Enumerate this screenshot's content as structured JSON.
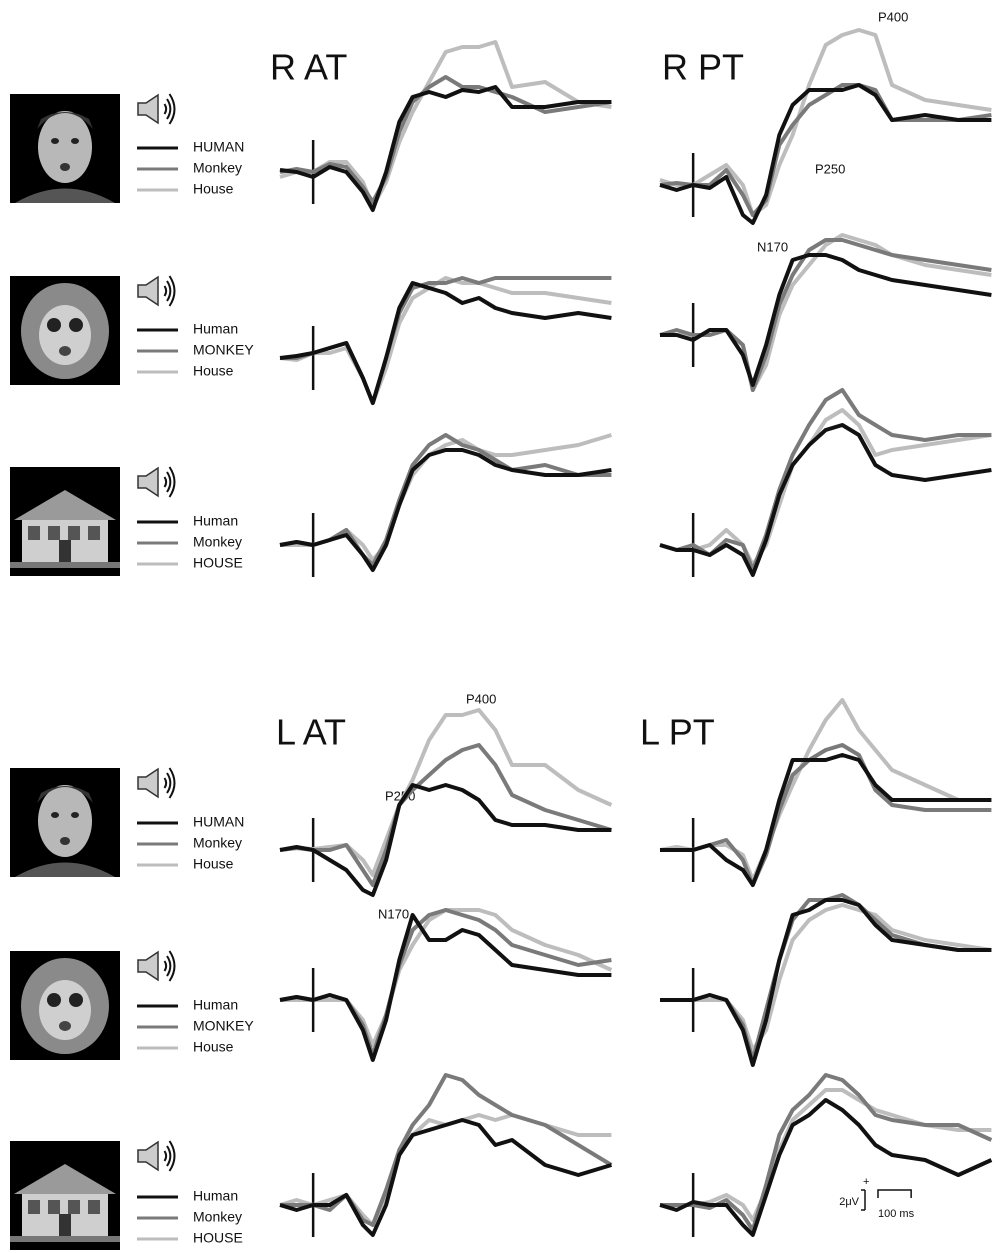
{
  "chart_data": [
    {
      "type": "line",
      "title": "R AT",
      "x": [
        -100,
        -50,
        0,
        50,
        100,
        150,
        180,
        220,
        260,
        300,
        350,
        400,
        450,
        500,
        550,
        600,
        700,
        800,
        900
      ],
      "xlim": [
        -100,
        950
      ],
      "ylim": [
        -7,
        16
      ],
      "series": [
        {
          "name": "HUMAN",
          "color": "#111111",
          "values": [
            0.2,
            0,
            -0.5,
            0.5,
            0,
            -2,
            -3.8,
            0,
            5,
            7.5,
            8,
            7.5,
            8.2,
            8,
            8.5,
            6.5,
            6.5,
            7,
            7
          ]
        },
        {
          "name": "Monkey",
          "color": "#7a7a7a",
          "values": [
            0,
            0.3,
            0,
            0.8,
            0.5,
            -1.5,
            -3,
            -0.5,
            4,
            7,
            8.5,
            9.5,
            8.5,
            8.5,
            8,
            7.5,
            6,
            6.5,
            7
          ]
        },
        {
          "name": "House",
          "color": "#bdbdbd",
          "values": [
            -0.5,
            0,
            0,
            1,
            1,
            -1,
            -3.5,
            -1,
            3,
            6,
            9,
            12,
            12.5,
            12.5,
            13,
            8.5,
            9,
            7,
            6.5
          ]
        }
      ]
    },
    {
      "type": "line",
      "title": "R PT",
      "annotations": [
        "P400",
        "P250",
        "N170"
      ],
      "x": [
        -100,
        -50,
        0,
        50,
        100,
        150,
        180,
        220,
        260,
        300,
        350,
        400,
        450,
        500,
        550,
        600,
        700,
        800,
        900
      ],
      "xlim": [
        -100,
        900
      ],
      "ylim": [
        -7,
        16
      ],
      "series": [
        {
          "color": "#111111",
          "values": [
            0,
            -0.5,
            0,
            -0.3,
            0.8,
            -3,
            -3.8,
            -1,
            5,
            8,
            9.5,
            9.5,
            9.5,
            10,
            9,
            6.5,
            7,
            6.5,
            6.5
          ]
        },
        {
          "color": "#7a7a7a",
          "values": [
            0,
            0.2,
            0,
            0,
            1.5,
            -1,
            -3,
            -1.5,
            4,
            6,
            8,
            9,
            10,
            10,
            9.5,
            6.5,
            6.5,
            6.5,
            7
          ]
        },
        {
          "color": "#bdbdbd",
          "values": [
            0.5,
            0,
            0,
            1,
            2,
            0,
            -3,
            -2,
            2,
            5,
            10,
            14,
            15,
            15.5,
            15,
            10,
            8.5,
            8,
            7.5
          ]
        }
      ]
    },
    {
      "type": "line",
      "x": [
        -100,
        -50,
        0,
        50,
        100,
        150,
        180,
        220,
        260,
        300,
        350,
        400,
        450,
        500,
        550,
        600,
        700,
        800,
        900
      ],
      "xlim": [
        -100,
        950
      ],
      "ylim": [
        -7,
        16
      ],
      "series": [
        {
          "name": "Human",
          "color": "#111111",
          "values": [
            0,
            0.2,
            0.5,
            1,
            1.5,
            -2,
            -4.5,
            0,
            5,
            7.5,
            7,
            6.5,
            5.5,
            6,
            5,
            4.5,
            4,
            4.5,
            4
          ]
        },
        {
          "name": "MONKEY",
          "color": "#7a7a7a",
          "values": [
            0,
            0,
            0.5,
            1,
            1.5,
            -2,
            -4.5,
            0,
            4.5,
            7,
            7.5,
            7.5,
            8,
            7.5,
            8,
            8,
            8,
            8,
            8
          ]
        },
        {
          "name": "House",
          "color": "#bdbdbd",
          "values": [
            0,
            -0.2,
            0.5,
            0.5,
            1,
            -2,
            -4.5,
            -1,
            3.5,
            6,
            7,
            8,
            7.5,
            7.5,
            7,
            6.5,
            6.5,
            6,
            5.5
          ]
        }
      ]
    },
    {
      "type": "line",
      "x": [
        -100,
        -50,
        0,
        50,
        100,
        150,
        180,
        220,
        260,
        300,
        350,
        400,
        450,
        500,
        550,
        600,
        700,
        800,
        900
      ],
      "xlim": [
        -100,
        900
      ],
      "ylim": [
        -7,
        16
      ],
      "series": [
        {
          "color": "#111111",
          "values": [
            0,
            0,
            -0.5,
            0.5,
            0.5,
            -2,
            -5,
            -1,
            4,
            7.5,
            8,
            8,
            7.5,
            6.5,
            6,
            5.5,
            5,
            4.5,
            4
          ]
        },
        {
          "color": "#7a7a7a",
          "values": [
            0,
            0.5,
            0,
            0,
            0.5,
            -1,
            -5.5,
            -2,
            3,
            6,
            8.5,
            9.5,
            9.5,
            9,
            8.5,
            8,
            7.5,
            7,
            6.5
          ]
        },
        {
          "color": "#bdbdbd",
          "values": [
            0,
            0,
            0,
            0,
            0.5,
            -1,
            -5.5,
            -3,
            2,
            5,
            7,
            9,
            10,
            9.5,
            9,
            8,
            7,
            6.5,
            6
          ]
        }
      ]
    },
    {
      "type": "line",
      "x": [
        -100,
        -50,
        0,
        50,
        100,
        150,
        180,
        220,
        260,
        300,
        350,
        400,
        450,
        500,
        550,
        600,
        700,
        800,
        900
      ],
      "xlim": [
        -100,
        950
      ],
      "ylim": [
        -7,
        16
      ],
      "series": [
        {
          "name": "Human",
          "color": "#111111",
          "values": [
            0,
            0.3,
            0,
            0.5,
            1,
            -1,
            -2.5,
            0,
            4,
            7.5,
            9,
            9.5,
            9.5,
            9,
            8,
            7.5,
            7,
            7,
            7.5
          ]
        },
        {
          "name": "Monkey",
          "color": "#7a7a7a",
          "values": [
            0,
            0.3,
            0,
            0.5,
            1.5,
            -1,
            -2,
            0.5,
            4.5,
            8,
            10,
            11,
            10,
            9.5,
            8.5,
            7.5,
            8,
            7,
            7
          ]
        },
        {
          "name": "HOUSE",
          "color": "#bdbdbd",
          "values": [
            0,
            0,
            0,
            0.5,
            1.5,
            0,
            -1.5,
            0,
            4,
            7,
            9,
            10,
            10.5,
            9.5,
            9,
            9,
            9.5,
            10,
            11
          ]
        }
      ]
    },
    {
      "type": "line",
      "x": [
        -100,
        -50,
        0,
        50,
        100,
        150,
        180,
        220,
        260,
        300,
        350,
        400,
        450,
        500,
        550,
        600,
        700,
        800,
        900
      ],
      "xlim": [
        -100,
        900
      ],
      "ylim": [
        -7,
        16
      ],
      "series": [
        {
          "color": "#111111",
          "values": [
            0,
            -0.5,
            -0.5,
            -1,
            0,
            -1,
            -3,
            0.5,
            5,
            8,
            10,
            11.5,
            12,
            11,
            8,
            7,
            6.5,
            7,
            7.5
          ]
        },
        {
          "color": "#7a7a7a",
          "values": [
            0,
            -0.5,
            0,
            -1,
            0.5,
            0,
            -2.5,
            1,
            5.5,
            9,
            12,
            14.5,
            15.5,
            13,
            12,
            11,
            10.5,
            11,
            11
          ]
        },
        {
          "color": "#bdbdbd",
          "values": [
            0,
            -0.5,
            -0.5,
            0,
            1.5,
            0,
            -2,
            0,
            4,
            8,
            10,
            12.5,
            13.5,
            12,
            9,
            9.5,
            10,
            10.5,
            11
          ]
        }
      ]
    },
    {
      "type": "line",
      "title": "L AT",
      "annotations": [
        "P400",
        "P250",
        "N170"
      ],
      "x": [
        -100,
        -50,
        0,
        50,
        100,
        150,
        180,
        220,
        260,
        300,
        350,
        400,
        450,
        500,
        550,
        600,
        700,
        800,
        900
      ],
      "xlim": [
        -100,
        950
      ],
      "ylim": [
        -7,
        16
      ],
      "series": [
        {
          "name": "HUMAN",
          "color": "#111111",
          "values": [
            0,
            0.3,
            0,
            -1,
            -2,
            -4,
            -4.5,
            -1,
            4.5,
            6.5,
            6,
            6.5,
            6,
            5,
            3,
            2.5,
            2.5,
            2,
            2
          ]
        },
        {
          "name": "Monkey",
          "color": "#7a7a7a",
          "values": [
            0,
            0.2,
            0,
            0,
            0.5,
            -2,
            -3.5,
            0,
            4.5,
            6,
            7.5,
            9,
            10,
            10.5,
            8.5,
            5.5,
            4,
            3,
            2
          ]
        },
        {
          "name": "House",
          "color": "#bdbdbd",
          "values": [
            0,
            0.2,
            0.1,
            0.3,
            0.5,
            -1,
            -2.5,
            1,
            4.5,
            7,
            11,
            13.5,
            13.5,
            14,
            12,
            8.5,
            8.5,
            6,
            4.5
          ]
        }
      ]
    },
    {
      "type": "line",
      "title": "L PT",
      "x": [
        -100,
        -50,
        0,
        50,
        100,
        150,
        180,
        220,
        260,
        300,
        350,
        400,
        450,
        500,
        550,
        600,
        700,
        800,
        900
      ],
      "xlim": [
        -100,
        900
      ],
      "ylim": [
        -7,
        16
      ],
      "series": [
        {
          "color": "#111111",
          "values": [
            0,
            0,
            0,
            0.5,
            -1,
            -2,
            -3.5,
            0,
            5,
            9,
            9,
            9,
            9.5,
            9,
            6.5,
            5,
            5,
            5,
            5
          ]
        },
        {
          "color": "#7a7a7a",
          "values": [
            0,
            0,
            0,
            0.5,
            1,
            -1,
            -3.5,
            -0.5,
            4,
            7.5,
            9,
            10,
            10.5,
            9.5,
            6,
            4.5,
            4,
            4,
            4
          ]
        },
        {
          "color": "#bdbdbd",
          "values": [
            0,
            0.3,
            0,
            0.5,
            0.5,
            -0.5,
            -3,
            0,
            3.5,
            6.5,
            10,
            13,
            15,
            12,
            10,
            8,
            6.5,
            5,
            5
          ]
        }
      ]
    },
    {
      "type": "line",
      "x": [
        -100,
        -50,
        0,
        50,
        100,
        150,
        180,
        220,
        260,
        300,
        350,
        400,
        450,
        500,
        550,
        600,
        700,
        800,
        900
      ],
      "xlim": [
        -100,
        950
      ],
      "ylim": [
        -7,
        16
      ],
      "series": [
        {
          "name": "Human",
          "color": "#111111",
          "values": [
            0,
            0.3,
            0,
            0.5,
            0,
            -3,
            -6,
            -2,
            4,
            8.5,
            6,
            6,
            7,
            6.5,
            5,
            3.5,
            3,
            2.5,
            2.5
          ]
        },
        {
          "name": "MONKEY",
          "color": "#7a7a7a",
          "values": [
            0,
            0.3,
            0,
            0.5,
            0,
            -2.5,
            -5.5,
            -1.5,
            3.5,
            7,
            8.5,
            9,
            8.5,
            8,
            7,
            5.5,
            4.5,
            3.5,
            4
          ]
        },
        {
          "name": "House",
          "color": "#bdbdbd",
          "values": [
            0,
            0,
            0,
            0,
            0,
            -2,
            -4.5,
            -1.5,
            3,
            5.5,
            8,
            9,
            9,
            9,
            8.5,
            7,
            5.5,
            4.5,
            3
          ]
        }
      ]
    },
    {
      "type": "line",
      "x": [
        -100,
        -50,
        0,
        50,
        100,
        150,
        180,
        220,
        260,
        300,
        350,
        400,
        450,
        500,
        550,
        600,
        700,
        800,
        900
      ],
      "xlim": [
        -100,
        900
      ],
      "ylim": [
        -7,
        16
      ],
      "series": [
        {
          "color": "#111111",
          "values": [
            0,
            0,
            0,
            0.5,
            0,
            -3,
            -6.5,
            -2,
            4,
            8.5,
            9,
            10,
            10,
            9.5,
            7.5,
            6,
            5.5,
            5,
            5
          ]
        },
        {
          "color": "#7a7a7a",
          "values": [
            0,
            0,
            0,
            0.5,
            0,
            -2.5,
            -6,
            -1,
            4,
            8,
            10,
            10,
            10.5,
            9.5,
            8,
            6.5,
            5.5,
            5,
            5
          ]
        },
        {
          "color": "#bdbdbd",
          "values": [
            0,
            0,
            0,
            0,
            0,
            -2,
            -5,
            -3,
            2,
            6,
            8,
            9,
            9.5,
            9,
            8.5,
            7,
            6,
            5.5,
            5
          ]
        }
      ]
    },
    {
      "type": "line",
      "x": [
        -100,
        -50,
        0,
        50,
        100,
        150,
        180,
        220,
        260,
        300,
        350,
        400,
        450,
        500,
        550,
        600,
        700,
        800,
        900
      ],
      "xlim": [
        -100,
        950
      ],
      "ylim": [
        -7,
        16
      ],
      "series": [
        {
          "name": "Human",
          "color": "#111111",
          "values": [
            0,
            -0.5,
            0,
            0,
            1,
            -2,
            -3,
            0,
            5,
            7,
            7.5,
            8,
            8.5,
            8,
            6,
            6.5,
            4,
            3,
            4
          ]
        },
        {
          "name": "Monkey",
          "color": "#7a7a7a",
          "values": [
            0,
            0,
            0,
            -0.5,
            1,
            -1.5,
            -2,
            1.5,
            5.5,
            8,
            10,
            13,
            12.5,
            11,
            10,
            9,
            8,
            6,
            4
          ]
        },
        {
          "name": "HOUSE",
          "color": "#bdbdbd",
          "values": [
            0,
            0.5,
            0,
            0.5,
            1,
            -1,
            -2,
            1,
            5,
            7,
            8.5,
            8,
            8.5,
            9,
            8.5,
            9,
            8,
            7,
            7
          ]
        }
      ]
    },
    {
      "type": "line",
      "x": [
        -100,
        -50,
        0,
        50,
        100,
        150,
        180,
        220,
        260,
        300,
        350,
        400,
        450,
        500,
        550,
        600,
        700,
        800,
        900
      ],
      "xlim": [
        -100,
        900
      ],
      "ylim": [
        -7,
        16
      ],
      "series": [
        {
          "color": "#111111",
          "values": [
            0,
            -0.5,
            0.3,
            0,
            0,
            -2,
            -3,
            1,
            5,
            8,
            9,
            10.5,
            9.5,
            8,
            6,
            5,
            4.5,
            3,
            4.5
          ]
        },
        {
          "color": "#7a7a7a",
          "values": [
            0,
            0,
            0,
            -0.3,
            0.5,
            -1,
            -2.5,
            2,
            7,
            9.5,
            11,
            13,
            12.5,
            11,
            9,
            8.5,
            8,
            8,
            6.5
          ]
        },
        {
          "color": "#bdbdbd",
          "values": [
            0,
            0,
            0,
            0.3,
            1,
            0,
            -1.5,
            1.5,
            5.5,
            8.5,
            10,
            11.5,
            11.5,
            10.5,
            9.5,
            9,
            8,
            7.5,
            7.5
          ]
        }
      ]
    }
  ],
  "scale_bar": {
    "polarity": "+",
    "amplitude": 2,
    "amplitude_label": "2μV",
    "time": 100,
    "time_label": "100 ms"
  }
}
